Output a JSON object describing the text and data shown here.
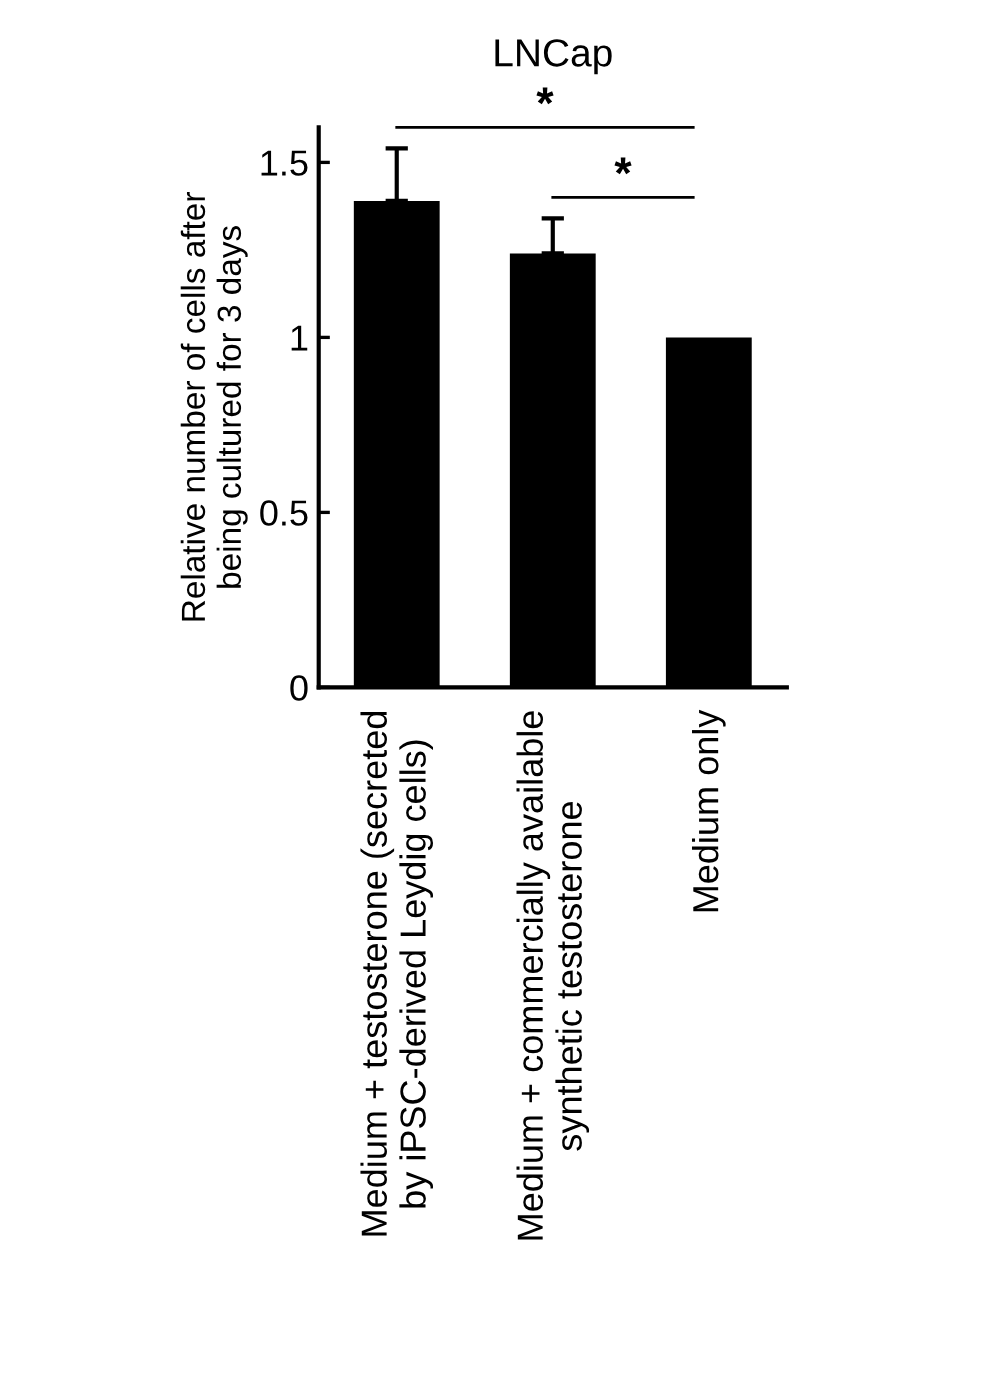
{
  "chart_data": {
    "type": "bar",
    "title": "LNCap",
    "ylabel": "Relative number of cells after\nbeing cultured for 3 days",
    "categories": [
      "Medium + testosterone (secreted\nby iPSC-derived Leydig cells)",
      "Medium + commercially available\nsynthetic testosterone",
      "Medium only"
    ],
    "values": [
      1.39,
      1.24,
      1.0
    ],
    "errors": [
      [
        1.39,
        1.54
      ],
      [
        1.24,
        1.34
      ],
      null
    ],
    "color": "#000000",
    "ylim": [
      0,
      1.6
    ],
    "yticks": [
      0,
      0.5,
      1,
      1.5
    ],
    "grid": false,
    "annotations": [
      "*",
      "*"
    ]
  }
}
